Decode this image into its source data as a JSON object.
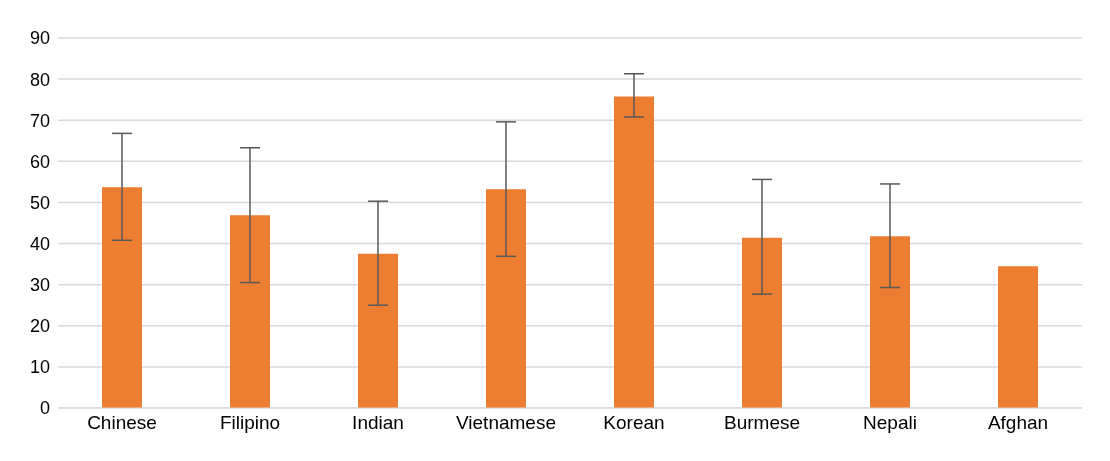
{
  "chart_data": {
    "type": "bar",
    "categories": [
      "Chinese",
      "Filipino",
      "Indian",
      "Vietnamese",
      "Korean",
      "Burmese",
      "Nepali",
      "Afghan"
    ],
    "values": [
      53.7,
      46.9,
      37.5,
      53.2,
      75.8,
      41.4,
      41.8,
      34.5
    ],
    "errors": [
      [
        40.8,
        66.8
      ],
      [
        30.5,
        63.3
      ],
      [
        25.0,
        50.3
      ],
      [
        36.9,
        69.6
      ],
      [
        70.8,
        81.3
      ],
      [
        27.7,
        55.6
      ],
      [
        29.3,
        54.5
      ],
      null
    ],
    "color": "#ed7d31",
    "ylim": [
      0,
      90
    ],
    "yticks": [
      0,
      10,
      20,
      30,
      40,
      50,
      60,
      70,
      80,
      90
    ],
    "grid": "y"
  }
}
